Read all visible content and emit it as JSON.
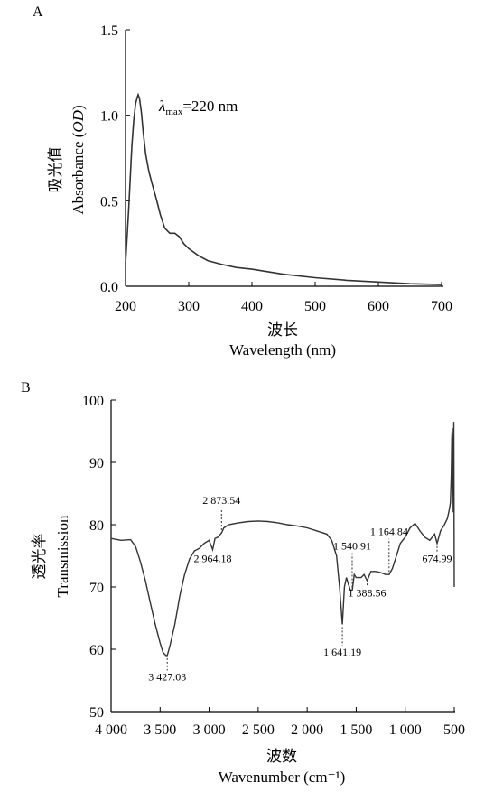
{
  "chart_data": [
    {
      "panel": "A",
      "type": "line",
      "xlabel_cn": "波长",
      "xlabel": "Wavelength (nm)",
      "ylabel_cn": "吸光值",
      "ylabel_prefix": "Absorbance (",
      "ylabel_od": "OD",
      "ylabel_suffix": ")",
      "xlim": [
        200,
        700
      ],
      "ylim": [
        0,
        1.5
      ],
      "x_ticks": [
        200,
        300,
        400,
        500,
        600,
        700
      ],
      "x_tick_labels": [
        "200",
        "300",
        "400",
        "500",
        "600",
        "700"
      ],
      "y_ticks": [
        0,
        0.5,
        1.0,
        1.5
      ],
      "y_tick_labels": [
        "0.0",
        "0.5",
        "1.0",
        "1.5"
      ],
      "annotation": {
        "symbol": "λ",
        "sub": "max",
        "text": "=220 nm"
      },
      "series": [
        {
          "x": [
            200,
            205,
            210,
            213,
            216,
            219,
            220,
            222,
            225,
            228,
            232,
            237,
            242,
            248,
            255,
            262,
            270,
            278,
            285,
            292,
            300,
            315,
            330,
            350,
            375,
            400,
            450,
            500,
            550,
            600,
            650,
            700
          ],
          "y": [
            0.13,
            0.45,
            0.82,
            0.97,
            1.07,
            1.11,
            1.12,
            1.1,
            1.02,
            0.9,
            0.77,
            0.67,
            0.6,
            0.52,
            0.42,
            0.34,
            0.31,
            0.31,
            0.29,
            0.25,
            0.22,
            0.18,
            0.15,
            0.13,
            0.11,
            0.1,
            0.07,
            0.05,
            0.035,
            0.025,
            0.015,
            0.01
          ]
        }
      ]
    },
    {
      "panel": "B",
      "type": "line",
      "xlabel_cn": "波数",
      "xlabel": "Wavenumber (cm⁻¹)",
      "ylabel_cn": "透光率",
      "ylabel": "Transmission",
      "xlim": [
        4000,
        500
      ],
      "ylim": [
        50,
        100
      ],
      "x_ticks": [
        4000,
        3500,
        3000,
        2500,
        2000,
        1500,
        1000,
        500
      ],
      "x_tick_labels": [
        "4 000",
        "3 500",
        "3 000",
        "2 500",
        "2 000",
        "1 500",
        "1 000",
        "500"
      ],
      "y_ticks": [
        50,
        60,
        70,
        80,
        90,
        100
      ],
      "y_tick_labels": [
        "50",
        "60",
        "70",
        "80",
        "90",
        "100"
      ],
      "peaks": [
        {
          "x": 3427.03,
          "y": 59.0,
          "label": "3 427.03",
          "text_y": 55.0
        },
        {
          "x": 2964.18,
          "y": 76.0,
          "label": "2 964.18",
          "text_y": 74.0
        },
        {
          "x": 2873.54,
          "y": 78.7,
          "label": "2 873.54",
          "text_y": 83.3
        },
        {
          "x": 1641.19,
          "y": 64.0,
          "label": "1 641.19",
          "text_y": 59.0
        },
        {
          "x": 1540.91,
          "y": 69.5,
          "label": "1 540.91",
          "text_y": 76.0
        },
        {
          "x": 1388.56,
          "y": 71.0,
          "label": "1 388.56",
          "text_y": 68.5
        },
        {
          "x": 1164.84,
          "y": 72.0,
          "label": "1 164.84",
          "text_y": 78.3
        },
        {
          "x": 674.99,
          "y": 77.0,
          "label": "674.99",
          "text_y": 74.0
        }
      ],
      "series": [
        {
          "x": [
            4000,
            3900,
            3800,
            3750,
            3700,
            3650,
            3600,
            3550,
            3500,
            3470,
            3440,
            3427,
            3400,
            3350,
            3300,
            3250,
            3200,
            3150,
            3100,
            3050,
            3000,
            2964,
            2940,
            2910,
            2873,
            2850,
            2800,
            2700,
            2600,
            2500,
            2400,
            2300,
            2200,
            2100,
            2000,
            1900,
            1800,
            1750,
            1700,
            1670,
            1641,
            1620,
            1600,
            1580,
            1560,
            1540,
            1520,
            1500,
            1450,
            1420,
            1388,
            1350,
            1300,
            1250,
            1200,
            1164,
            1130,
            1100,
            1050,
            1000,
            950,
            900,
            850,
            800,
            750,
            700,
            675,
            640,
            600,
            570,
            550,
            540,
            530,
            525,
            520,
            515,
            510,
            505,
            500
          ],
          "y": [
            77.8,
            77.5,
            77.6,
            76.5,
            74.0,
            71.0,
            67.5,
            64.0,
            61.0,
            59.5,
            59.0,
            59.0,
            60.5,
            64.0,
            68.5,
            72.0,
            74.5,
            75.8,
            76.2,
            77.0,
            77.5,
            76.0,
            77.8,
            78.0,
            78.7,
            79.5,
            80.0,
            80.3,
            80.5,
            80.6,
            80.5,
            80.3,
            80.0,
            79.8,
            79.5,
            79.0,
            78.5,
            77.5,
            75.0,
            70.0,
            64.0,
            70.0,
            71.5,
            70.5,
            69.5,
            69.5,
            72.0,
            71.5,
            71.5,
            72.0,
            71.0,
            72.5,
            72.5,
            72.3,
            72.0,
            72.0,
            73.0,
            74.5,
            77.0,
            78.0,
            79.5,
            80.2,
            79.0,
            78.0,
            77.5,
            78.5,
            77.0,
            79.0,
            80.0,
            81.0,
            82.5,
            83.5,
            88.0,
            94.0,
            95.5,
            90.0,
            82.0,
            96.5,
            70.0
          ]
        }
      ]
    }
  ]
}
